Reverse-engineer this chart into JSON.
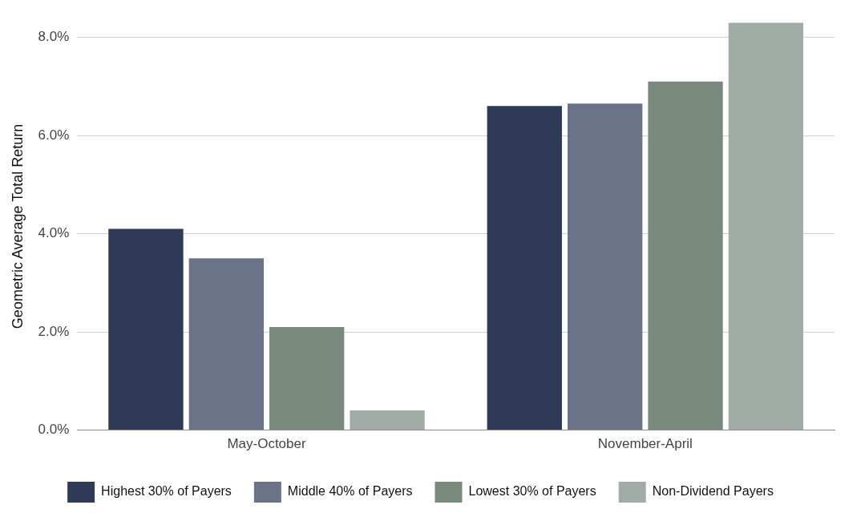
{
  "chart_data": {
    "type": "bar",
    "ylabel": "Geometric Average Total Return",
    "categories": [
      "May-October",
      "November-April"
    ],
    "series": [
      {
        "name": "Highest 30% of Payers",
        "color": "#2f3a56",
        "values": [
          4.1,
          6.6
        ]
      },
      {
        "name": "Middle 40% of Payers",
        "color": "#6a7388",
        "values": [
          3.5,
          6.65
        ]
      },
      {
        "name": "Lowest 30% of Payers",
        "color": "#79897d",
        "values": [
          2.1,
          7.1
        ]
      },
      {
        "name": "Non-Dividend Payers",
        "color": "#a1aca6",
        "values": [
          0.4,
          8.3
        ]
      }
    ],
    "ylim": [
      0,
      8.3
    ],
    "yticks": [
      {
        "value": 0,
        "label": "0.0%"
      },
      {
        "value": 2,
        "label": "2.0%"
      },
      {
        "value": 4,
        "label": "4.0%"
      },
      {
        "value": 6,
        "label": "6.0%"
      },
      {
        "value": 8,
        "label": "8.0%"
      }
    ],
    "grid": "y",
    "legend": "bottom"
  }
}
